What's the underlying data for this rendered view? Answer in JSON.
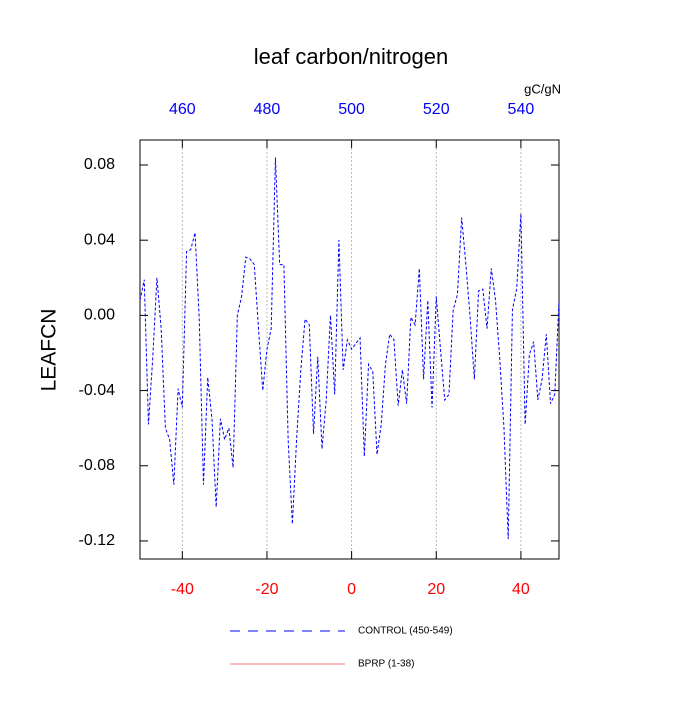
{
  "chart_data": {
    "type": "line",
    "title": "leaf carbon/nitrogen",
    "y_label": "LEAFCN",
    "x2_label": "gC/gN",
    "x": [
      -50,
      -49,
      -48,
      -47,
      -46,
      -45,
      -44,
      -43,
      -42,
      -41,
      -40,
      -39,
      -38,
      -37,
      -36,
      -35,
      -34,
      -33,
      -32,
      -31,
      -30,
      -29,
      -28,
      -27,
      -26,
      -25,
      -24,
      -23,
      -22,
      -21,
      -20,
      -19,
      -18,
      -17,
      -16,
      -15,
      -14,
      -13,
      -12,
      -11,
      -10,
      -9,
      -8,
      -7,
      -6,
      -5,
      -4,
      -3,
      -2,
      -1,
      0,
      1,
      2,
      3,
      4,
      5,
      6,
      7,
      8,
      9,
      10,
      11,
      12,
      13,
      14,
      15,
      16,
      17,
      18,
      19,
      20,
      21,
      22,
      23,
      24,
      25,
      26,
      27,
      28,
      29,
      30,
      31,
      32,
      33,
      34,
      35,
      36,
      37,
      38,
      39,
      40,
      41,
      42,
      43,
      44,
      45,
      46,
      47,
      48,
      49
    ],
    "series": [
      {
        "name": "CONTROL (450-549)",
        "color": "#0000ff",
        "dash": true,
        "values": [
          0.008,
          0.019,
          -0.058,
          -0.023,
          0.02,
          -0.007,
          -0.06,
          -0.066,
          -0.09,
          -0.039,
          -0.049,
          0.034,
          0.035,
          0.044,
          -0.002,
          -0.09,
          -0.033,
          -0.055,
          -0.102,
          -0.055,
          -0.066,
          -0.06,
          -0.081,
          0.0,
          0.01,
          0.031,
          0.03,
          0.027,
          -0.007,
          -0.04,
          -0.018,
          -0.007,
          0.084,
          0.027,
          0.027,
          -0.066,
          -0.111,
          -0.066,
          -0.029,
          -0.002,
          -0.005,
          -0.063,
          -0.022,
          -0.071,
          -0.045,
          0.0,
          -0.042,
          0.04,
          -0.029,
          -0.013,
          -0.018,
          -0.015,
          -0.012,
          -0.075,
          -0.026,
          -0.03,
          -0.074,
          -0.058,
          -0.026,
          -0.01,
          -0.013,
          -0.048,
          -0.029,
          -0.047,
          -0.001,
          -0.005,
          0.025,
          -0.034,
          0.008,
          -0.049,
          0.01,
          -0.018,
          -0.045,
          -0.042,
          0.003,
          0.011,
          0.052,
          0.027,
          -0.001,
          -0.034,
          0.013,
          0.014,
          -0.007,
          0.025,
          0.008,
          -0.023,
          -0.06,
          -0.119,
          0.003,
          0.014,
          0.054,
          -0.058,
          -0.021,
          -0.014,
          -0.045,
          -0.034,
          -0.01,
          -0.047,
          -0.042,
          0.008
        ]
      },
      {
        "name": "BPRP (1-38)",
        "color": "#ff7777",
        "dash": false,
        "values": [
          null,
          null,
          null,
          null,
          null,
          null,
          null,
          null,
          null,
          null,
          null,
          null,
          null,
          null,
          null,
          null,
          null,
          null,
          null,
          null,
          null,
          null,
          null,
          null,
          null,
          null,
          null,
          null,
          null,
          null,
          null,
          null,
          null,
          null,
          null,
          null,
          null,
          null,
          null,
          null,
          null,
          null,
          null,
          null,
          null,
          null,
          null,
          null,
          null,
          null,
          null,
          null,
          null,
          null,
          null,
          null,
          null,
          null,
          null,
          null,
          null,
          null,
          null,
          null,
          null,
          null,
          null,
          null,
          null,
          null,
          null,
          null,
          null,
          null,
          null,
          null,
          null,
          null,
          null,
          null,
          null,
          null,
          null,
          null,
          null,
          null,
          null,
          null,
          null,
          null,
          null,
          null,
          null,
          null,
          null,
          null,
          null,
          null,
          null,
          null
        ]
      }
    ],
    "xlim": [
      -50,
      49
    ],
    "xticks": [
      -40,
      -20,
      0,
      20,
      40
    ],
    "xtick_color": "#ff0000",
    "x2lim": [
      450,
      549
    ],
    "x2ticks": [
      460,
      480,
      500,
      520,
      540
    ],
    "x2tick_color": "#0000ff",
    "ylim": [
      -0.1296,
      0.0933
    ],
    "yticks": [
      0.08,
      0.04,
      {
        "value": 0,
        "label": "0.00"
      },
      -0.04,
      -0.08,
      -0.12
    ],
    "grid": "x"
  }
}
